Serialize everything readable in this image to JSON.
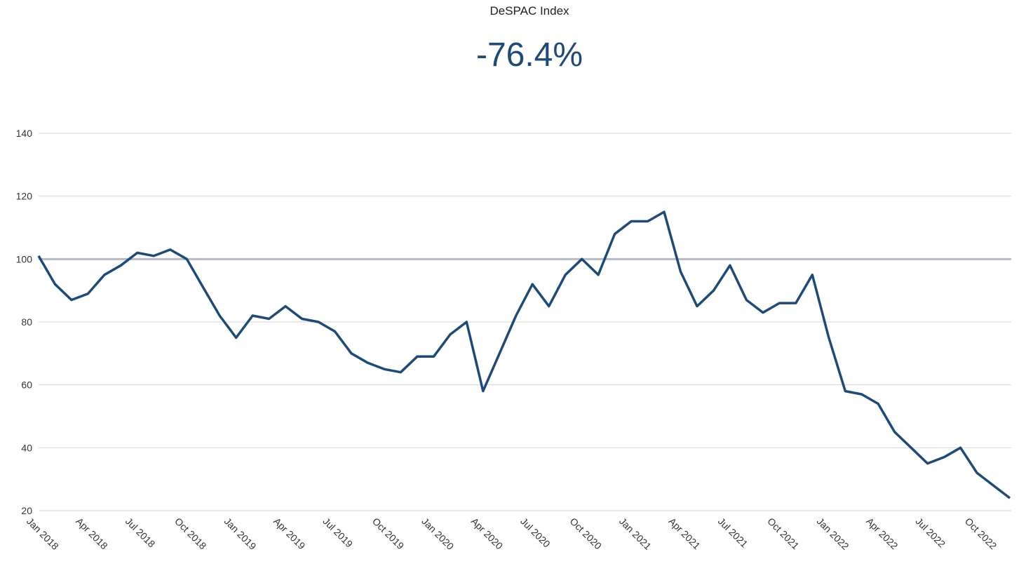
{
  "chart_data": {
    "type": "line",
    "title": "DeSPAC Index",
    "headline": "-76.4%",
    "x": [
      "Jan 2018",
      "Feb 2018",
      "Mar 2018",
      "Apr 2018",
      "May 2018",
      "Jun 2018",
      "Jul 2018",
      "Aug 2018",
      "Sep 2018",
      "Oct 2018",
      "Nov 2018",
      "Dec 2018",
      "Jan 2019",
      "Feb 2019",
      "Mar 2019",
      "Apr 2019",
      "May 2019",
      "Jun 2019",
      "Jul 2019",
      "Aug 2019",
      "Sep 2019",
      "Oct 2019",
      "Nov 2019",
      "Dec 2019",
      "Jan 2020",
      "Feb 2020",
      "Mar 2020",
      "Apr 2020",
      "May 2020",
      "Jun 2020",
      "Jul 2020",
      "Aug 2020",
      "Sep 2020",
      "Oct 2020",
      "Nov 2020",
      "Dec 2020",
      "Jan 2021",
      "Feb 2021",
      "Mar 2021",
      "Apr 2021",
      "May 2021",
      "Jun 2021",
      "Jul 2021",
      "Aug 2021",
      "Sep 2021",
      "Oct 2021",
      "Nov 2021",
      "Dec 2021",
      "Jan 2022",
      "Feb 2022",
      "Mar 2022",
      "Apr 2022",
      "May 2022",
      "Jun 2022",
      "Jul 2022",
      "Aug 2022",
      "Sep 2022",
      "Oct 2022",
      "Nov 2022",
      "Dec 2022"
    ],
    "series": [
      {
        "name": "DeSPAC Index",
        "color": "#1e4a78",
        "values": [
          101,
          92,
          87,
          89,
          95,
          98,
          102,
          101,
          103,
          100,
          91,
          82,
          75,
          82,
          81,
          85,
          81,
          80,
          77,
          70,
          67,
          65,
          64,
          69,
          69,
          76,
          80,
          58,
          70,
          82,
          92,
          85,
          95,
          100,
          95,
          108,
          112,
          112,
          115,
          96,
          85,
          90,
          98,
          87,
          83,
          86,
          86,
          95,
          75,
          58,
          57,
          54,
          45,
          40,
          35,
          37,
          40,
          32,
          28,
          24
        ]
      }
    ],
    "xticks": [
      "Jan 2018",
      "Apr 2018",
      "Jul 2018",
      "Oct 2018",
      "Jan 2019",
      "Apr 2019",
      "Jul 2019",
      "Oct 2019",
      "Jan 2020",
      "Apr 2020",
      "Jul 2020",
      "Oct 2020",
      "Jan 2021",
      "Apr 2021",
      "Jul 2021",
      "Oct 2021",
      "Jan 2022",
      "Apr 2022",
      "Jul 2022",
      "Oct 2022"
    ],
    "ylim": [
      20,
      140
    ],
    "yticks": [
      20,
      40,
      60,
      80,
      100,
      120,
      140
    ],
    "grid": true,
    "reference_line": 100
  }
}
